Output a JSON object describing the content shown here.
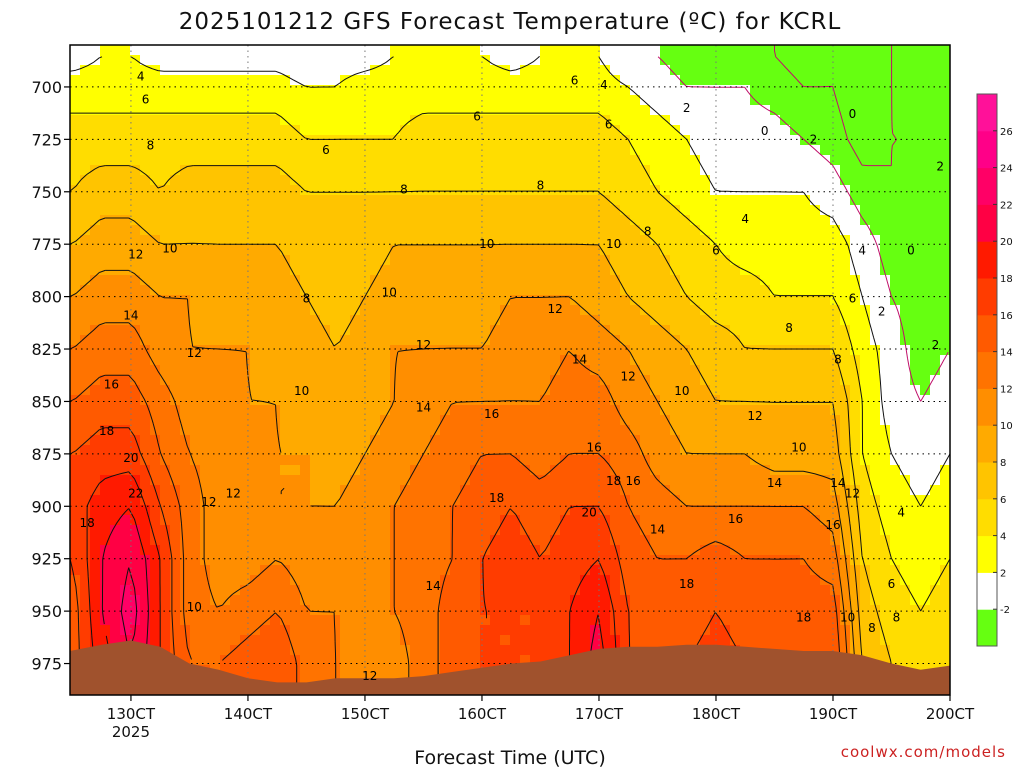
{
  "chart_data": {
    "type": "heatmap",
    "title": "2025101212 GFS Forecast Temperature (ºC) for KCRL",
    "xlabel": "Forecast Time (UTC)",
    "ylabel": "",
    "credit": "coolwx.com/models",
    "y_axis": {
      "ticks": [
        "700",
        "725",
        "750",
        "775",
        "800",
        "825",
        "850",
        "875",
        "900",
        "925",
        "950",
        "975"
      ],
      "range_hPa": [
        680,
        990
      ],
      "inverted": true
    },
    "x_axis": {
      "ticks": [
        {
          "label": "130CT",
          "sub": "2025",
          "hour": 12
        },
        {
          "label": "140CT",
          "sub": "",
          "hour": 36
        },
        {
          "label": "150CT",
          "sub": "",
          "hour": 60
        },
        {
          "label": "160CT",
          "sub": "",
          "hour": 84
        },
        {
          "label": "170CT",
          "sub": "",
          "hour": 108
        },
        {
          "label": "180CT",
          "sub": "",
          "hour": 132
        },
        {
          "label": "190CT",
          "sub": "",
          "hour": 156
        },
        {
          "label": "200CT",
          "sub": "",
          "hour": 180
        }
      ],
      "range_hours": [
        -0.5,
        180
      ]
    },
    "colorbar": {
      "levels": [
        {
          "label": "-2",
          "color": "#66ff11"
        },
        {
          "label": "2",
          "color": "#ffffff"
        },
        {
          "label": "4",
          "color": "#ffff00"
        },
        {
          "label": "6",
          "color": "#ffdd00"
        },
        {
          "label": "8",
          "color": "#ffc400"
        },
        {
          "label": "10",
          "color": "#ffaa00"
        },
        {
          "label": "12",
          "color": "#ff8e00"
        },
        {
          "label": "14",
          "color": "#ff7300"
        },
        {
          "label": "16",
          "color": "#ff5a00"
        },
        {
          "label": "18",
          "color": "#ff3c00"
        },
        {
          "label": "20",
          "color": "#ff1a00"
        },
        {
          "label": "22",
          "color": "#ff0044"
        },
        {
          "label": "24",
          "color": "#ff0066"
        },
        {
          "label": "26",
          "color": "#ff0088"
        }
      ],
      "top_color": "#ff1199"
    },
    "hours": [
      0,
      6,
      12,
      18,
      24,
      30,
      36,
      42,
      48,
      54,
      60,
      66,
      72,
      78,
      84,
      90,
      96,
      102,
      108,
      114,
      120,
      126,
      132,
      138,
      144,
      150,
      156,
      162,
      168,
      174,
      180
    ],
    "levels_hPa": [
      685,
      700,
      725,
      750,
      775,
      800,
      825,
      850,
      875,
      900,
      925,
      950,
      975,
      990
    ],
    "temperature": [
      [
        3,
        4,
        4,
        3,
        3,
        3,
        3,
        3,
        2,
        3,
        3,
        4,
        4,
        4,
        4,
        3,
        4,
        4,
        4,
        2,
        2,
        1,
        1,
        1,
        0,
        -1,
        0,
        -2,
        0,
        1,
        1
      ],
      [
        5,
        5,
        5,
        5,
        5,
        5,
        5,
        5,
        4,
        4,
        5,
        5,
        5,
        5,
        5,
        5,
        5,
        5,
        5,
        4,
        3,
        2,
        2,
        2,
        1,
        0,
        0,
        -2,
        0,
        1,
        1
      ],
      [
        7,
        7,
        7,
        7,
        7,
        7,
        7,
        7,
        6,
        6,
        6,
        6,
        7,
        7,
        7,
        7,
        7,
        7,
        7,
        6,
        5,
        4,
        3,
        3,
        3,
        2,
        1,
        -1,
        0,
        0,
        1
      ],
      [
        8,
        9,
        9,
        8,
        9,
        9,
        9,
        9,
        8,
        8,
        8,
        8,
        8,
        8,
        8,
        8,
        8,
        8,
        8,
        7,
        6,
        5,
        4,
        4,
        4,
        4,
        3,
        1,
        0,
        1,
        2
      ],
      [
        10,
        11,
        11,
        10,
        10,
        10,
        10,
        10,
        9,
        9,
        9,
        10,
        10,
        10,
        10,
        10,
        10,
        10,
        10,
        9,
        8,
        7,
        6,
        5,
        5,
        5,
        5,
        3,
        1,
        1,
        2
      ],
      [
        12,
        13,
        13,
        12,
        12,
        11,
        11,
        11,
        10,
        9,
        10,
        11,
        11,
        11,
        11,
        12,
        12,
        12,
        11,
        10,
        9,
        8,
        7,
        7,
        6,
        6,
        6,
        4,
        2,
        1,
        2
      ],
      [
        14,
        15,
        15,
        13,
        12,
        12,
        12,
        11,
        11,
        10,
        11,
        12,
        12,
        12,
        12,
        13,
        13,
        14,
        13,
        12,
        11,
        10,
        9,
        8,
        8,
        8,
        8,
        5,
        3,
        1,
        2
      ],
      [
        16,
        17,
        17,
        15,
        13,
        13,
        12,
        12,
        11,
        10,
        11,
        12,
        13,
        14,
        14,
        14,
        14,
        15,
        15,
        13,
        12,
        11,
        10,
        10,
        10,
        10,
        10,
        6,
        3,
        2,
        3
      ],
      [
        18,
        19,
        19,
        16,
        14,
        13,
        13,
        12,
        12,
        11,
        12,
        13,
        14,
        15,
        16,
        16,
        15,
        16,
        16,
        15,
        13,
        12,
        12,
        12,
        11,
        11,
        11,
        6,
        4,
        3,
        4
      ],
      [
        19,
        21,
        22,
        18,
        15,
        13,
        12,
        12,
        12,
        12,
        13,
        14,
        15,
        16,
        17,
        18,
        17,
        18,
        18,
        16,
        15,
        14,
        14,
        14,
        14,
        14,
        13,
        7,
        5,
        4,
        5
      ],
      [
        18,
        22,
        24,
        20,
        15,
        13,
        13,
        14,
        13,
        13,
        13,
        14,
        15,
        16,
        18,
        19,
        18,
        19,
        20,
        17,
        16,
        16,
        17,
        16,
        16,
        16,
        15,
        8,
        6,
        5,
        6
      ],
      [
        17,
        22,
        25,
        20,
        15,
        14,
        15,
        16,
        14,
        14,
        13,
        14,
        15,
        17,
        18,
        18,
        18,
        20,
        22,
        18,
        16,
        17,
        18,
        17,
        16,
        17,
        17,
        9,
        7,
        6,
        7
      ],
      [
        17,
        21,
        24,
        20,
        16,
        16,
        17,
        18,
        15,
        14,
        13,
        13,
        15,
        17,
        18,
        18,
        18,
        20,
        23,
        18,
        17,
        18,
        19,
        18,
        17,
        18,
        18,
        10,
        8,
        7,
        8
      ],
      [
        17,
        21,
        24,
        20,
        16,
        16,
        17,
        18,
        15,
        14,
        13,
        13,
        15,
        17,
        18,
        18,
        18,
        20,
        23,
        18,
        17,
        18,
        19,
        18,
        17,
        18,
        18,
        10,
        8,
        7,
        8
      ]
    ],
    "terrain_pressure_hPa": [
      {
        "hour": -0.5,
        "p": 969
      },
      {
        "hour": 6,
        "p": 966
      },
      {
        "hour": 12,
        "p": 964
      },
      {
        "hour": 18,
        "p": 967
      },
      {
        "hour": 24,
        "p": 975
      },
      {
        "hour": 30,
        "p": 978
      },
      {
        "hour": 36,
        "p": 982
      },
      {
        "hour": 42,
        "p": 984
      },
      {
        "hour": 48,
        "p": 984
      },
      {
        "hour": 54,
        "p": 982
      },
      {
        "hour": 60,
        "p": 982
      },
      {
        "hour": 66,
        "p": 982
      },
      {
        "hour": 72,
        "p": 981
      },
      {
        "hour": 78,
        "p": 979
      },
      {
        "hour": 84,
        "p": 977
      },
      {
        "hour": 90,
        "p": 975
      },
      {
        "hour": 96,
        "p": 974
      },
      {
        "hour": 102,
        "p": 971
      },
      {
        "hour": 108,
        "p": 968
      },
      {
        "hour": 114,
        "p": 967
      },
      {
        "hour": 120,
        "p": 967
      },
      {
        "hour": 126,
        "p": 966
      },
      {
        "hour": 132,
        "p": 966
      },
      {
        "hour": 138,
        "p": 967
      },
      {
        "hour": 144,
        "p": 968
      },
      {
        "hour": 150,
        "p": 969
      },
      {
        "hour": 156,
        "p": 969
      },
      {
        "hour": 162,
        "p": 971
      },
      {
        "hour": 168,
        "p": 975
      },
      {
        "hour": 174,
        "p": 978
      },
      {
        "hour": 180,
        "p": 976
      }
    ],
    "contour_labels": [
      {
        "text": "4",
        "hour": 14,
        "p": 695
      },
      {
        "text": "6",
        "hour": 15,
        "p": 706
      },
      {
        "text": "8",
        "hour": 16,
        "p": 728
      },
      {
        "text": "12",
        "hour": 13,
        "p": 780
      },
      {
        "text": "10",
        "hour": 20,
        "p": 777
      },
      {
        "text": "14",
        "hour": 12,
        "p": 809
      },
      {
        "text": "12",
        "hour": 25,
        "p": 827
      },
      {
        "text": "16",
        "hour": 8,
        "p": 842
      },
      {
        "text": "18",
        "hour": 7,
        "p": 864
      },
      {
        "text": "20",
        "hour": 12,
        "p": 877
      },
      {
        "text": "22",
        "hour": 13,
        "p": 894
      },
      {
        "text": "18",
        "hour": 3,
        "p": 908
      },
      {
        "text": "10",
        "hour": 47,
        "p": 845
      },
      {
        "text": "12",
        "hour": 28,
        "p": 898
      },
      {
        "text": "12",
        "hour": 33,
        "p": 894
      },
      {
        "text": "10",
        "hour": 25,
        "p": 948
      },
      {
        "text": "8",
        "hour": 48,
        "p": 801
      },
      {
        "text": "6",
        "hour": 52,
        "p": 730
      },
      {
        "text": "8",
        "hour": 68,
        "p": 749
      },
      {
        "text": "10",
        "hour": 65,
        "p": 798
      },
      {
        "text": "12",
        "hour": 72,
        "p": 823
      },
      {
        "text": "14",
        "hour": 72,
        "p": 853
      },
      {
        "text": "6",
        "hour": 83,
        "p": 714
      },
      {
        "text": "10",
        "hour": 85,
        "p": 775
      },
      {
        "text": "16",
        "hour": 86,
        "p": 856
      },
      {
        "text": "18",
        "hour": 87,
        "p": 896
      },
      {
        "text": "14",
        "hour": 74,
        "p": 938
      },
      {
        "text": "12",
        "hour": 61,
        "p": 981
      },
      {
        "text": "8",
        "hour": 96,
        "p": 747
      },
      {
        "text": "12",
        "hour": 99,
        "p": 806
      },
      {
        "text": "14",
        "hour": 104,
        "p": 830
      },
      {
        "text": "16",
        "hour": 107,
        "p": 872
      },
      {
        "text": "20",
        "hour": 106,
        "p": 903
      },
      {
        "text": "18",
        "hour": 111,
        "p": 888
      },
      {
        "text": "6",
        "hour": 103,
        "p": 697
      },
      {
        "text": "4",
        "hour": 109,
        "p": 699
      },
      {
        "text": "6",
        "hour": 110,
        "p": 718
      },
      {
        "text": "10",
        "hour": 111,
        "p": 775
      },
      {
        "text": "8",
        "hour": 118,
        "p": 769
      },
      {
        "text": "12",
        "hour": 114,
        "p": 838
      },
      {
        "text": "16",
        "hour": 115,
        "p": 888
      },
      {
        "text": "14",
        "hour": 120,
        "p": 911
      },
      {
        "text": "10",
        "hour": 125,
        "p": 845
      },
      {
        "text": "6",
        "hour": 132,
        "p": 778
      },
      {
        "text": "18",
        "hour": 126,
        "p": 937
      },
      {
        "text": "16",
        "hour": 136,
        "p": 906
      },
      {
        "text": "2",
        "hour": 126,
        "p": 710
      },
      {
        "text": "4",
        "hour": 138,
        "p": 763
      },
      {
        "text": "8",
        "hour": 147,
        "p": 815
      },
      {
        "text": "12",
        "hour": 140,
        "p": 857
      },
      {
        "text": "10",
        "hour": 149,
        "p": 872
      },
      {
        "text": "14",
        "hour": 144,
        "p": 889
      },
      {
        "text": "0",
        "hour": 142,
        "p": 721
      },
      {
        "text": "2",
        "hour": 152,
        "p": 725
      },
      {
        "text": "0",
        "hour": 160,
        "p": 713
      },
      {
        "text": "4",
        "hour": 162,
        "p": 778
      },
      {
        "text": "6",
        "hour": 160,
        "p": 801
      },
      {
        "text": "8",
        "hour": 157,
        "p": 830
      },
      {
        "text": "14",
        "hour": 157,
        "p": 889
      },
      {
        "text": "12",
        "hour": 160,
        "p": 894
      },
      {
        "text": "16",
        "hour": 156,
        "p": 909
      },
      {
        "text": "18",
        "hour": 150,
        "p": 953
      },
      {
        "text": "10",
        "hour": 159,
        "p": 953
      },
      {
        "text": "8",
        "hour": 164,
        "p": 958
      },
      {
        "text": "2",
        "hour": 166,
        "p": 807
      },
      {
        "text": "2",
        "hour": 178,
        "p": 738
      },
      {
        "text": "0",
        "hour": 172,
        "p": 778
      },
      {
        "text": "2",
        "hour": 177,
        "p": 823
      },
      {
        "text": "4",
        "hour": 170,
        "p": 903
      },
      {
        "text": "6",
        "hour": 168,
        "p": 937
      },
      {
        "text": "8",
        "hour": 169,
        "p": 953
      }
    ]
  }
}
